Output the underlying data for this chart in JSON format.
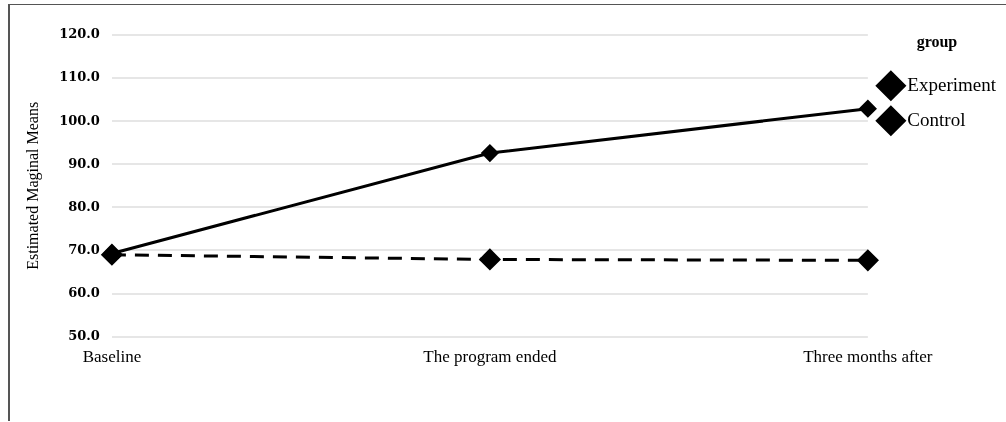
{
  "chart_data": {
    "type": "line",
    "ylabel": "Estimated Maginal Means",
    "legend_title": "group",
    "categories": [
      "Baseline",
      "The program ended",
      "Three months after"
    ],
    "series": [
      {
        "name": "Experiment",
        "color": "#000000",
        "values": [
          69.3,
          92.6,
          102.9
        ],
        "line_style": "solid"
      },
      {
        "name": "Control",
        "color": "#000000",
        "values": [
          69.0,
          67.9,
          67.7
        ],
        "line_style": "dashed"
      }
    ],
    "ylim": [
      50,
      120
    ],
    "yticks": [
      {
        "value": 50,
        "label": "50.0"
      },
      {
        "value": 60,
        "label": "60.0"
      },
      {
        "value": 70,
        "label": "70.0"
      },
      {
        "value": 80,
        "label": "80.0"
      },
      {
        "value": 90,
        "label": "90.0"
      },
      {
        "value": 100,
        "label": "100.0"
      },
      {
        "value": 110,
        "label": "110.0"
      },
      {
        "value": 120,
        "label": "120.0"
      }
    ],
    "grid": "y",
    "legend": "top right",
    "marker": "diamond"
  }
}
